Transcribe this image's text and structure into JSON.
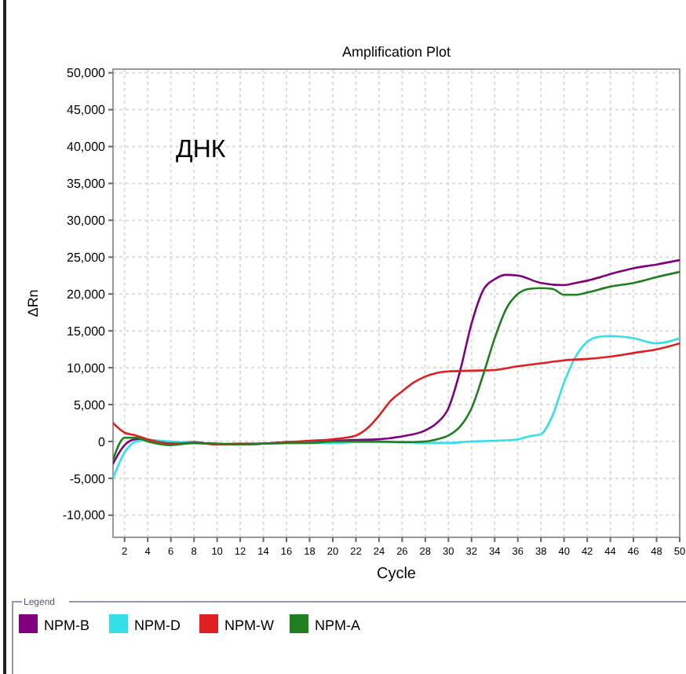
{
  "chart_data": {
    "type": "line",
    "title": "Amplification Plot",
    "xlabel": "Cycle",
    "ylabel": "ΔRn",
    "legend_title": "Legend",
    "annotations": [
      "ДНК"
    ],
    "xlim": [
      1,
      50
    ],
    "xticks": [
      2,
      4,
      6,
      8,
      10,
      12,
      14,
      16,
      18,
      20,
      22,
      24,
      26,
      28,
      30,
      32,
      34,
      36,
      38,
      40,
      42,
      44,
      46,
      48,
      50
    ],
    "ylim": [
      -13000,
      50500
    ],
    "yticks": [
      {
        "value": -10000,
        "label": "-10,000"
      },
      {
        "value": -5000,
        "label": "-5,000"
      },
      0,
      {
        "value": 5000,
        "label": "5,000"
      },
      {
        "value": 10000,
        "label": "10,000"
      },
      {
        "value": 15000,
        "label": "15,000"
      },
      {
        "value": 20000,
        "label": "20,000"
      },
      {
        "value": 25000,
        "label": "25,000"
      },
      {
        "value": 30000,
        "label": "30,000"
      },
      {
        "value": 35000,
        "label": "35,000"
      },
      {
        "value": 40000,
        "label": "40,000"
      },
      {
        "value": 45000,
        "label": "45,000"
      },
      {
        "value": 50000,
        "label": "50,000"
      }
    ],
    "grid": true,
    "legend": "bottom",
    "line_style": "solid",
    "series": [
      {
        "name": "NPM-B",
        "color": "#800080",
        "x": [
          1,
          2,
          3,
          4,
          6,
          8,
          10,
          12,
          14,
          16,
          18,
          20,
          22,
          24,
          26,
          28,
          29,
          30,
          31,
          32,
          33,
          34,
          35,
          36,
          38,
          40,
          41,
          42,
          44,
          46,
          48,
          50
        ],
        "values": [
          -3000,
          -500,
          300,
          200,
          -200,
          -100,
          -400,
          -400,
          -300,
          -100,
          0,
          100,
          200,
          300,
          700,
          1500,
          2500,
          4500,
          9500,
          16000,
          20500,
          22000,
          22600,
          22500,
          21500,
          21200,
          21500,
          21800,
          22700,
          23500,
          24000,
          24600
        ]
      },
      {
        "name": "NPM-D",
        "color": "#33e0e8",
        "x": [
          1,
          2,
          3,
          4,
          6,
          8,
          10,
          12,
          14,
          16,
          18,
          20,
          22,
          24,
          26,
          28,
          30,
          32,
          34,
          36,
          37,
          38,
          39,
          40,
          41,
          42,
          43,
          44,
          46,
          48,
          50
        ],
        "values": [
          -5000,
          -1500,
          0,
          200,
          0,
          -200,
          -300,
          -300,
          -300,
          -200,
          -200,
          -200,
          -100,
          -100,
          -100,
          -200,
          -200,
          0,
          100,
          300,
          700,
          1000,
          3500,
          8000,
          11500,
          13500,
          14200,
          14300,
          14000,
          13300,
          14000
        ]
      },
      {
        "name": "NPM-W",
        "color": "#e02020",
        "x": [
          1,
          2,
          3,
          4,
          6,
          8,
          10,
          12,
          14,
          16,
          18,
          20,
          22,
          23,
          24,
          25,
          26,
          27,
          28,
          29,
          30,
          32,
          34,
          36,
          38,
          40,
          42,
          44,
          46,
          48,
          50
        ],
        "values": [
          2500,
          1200,
          800,
          300,
          -300,
          -200,
          -400,
          -300,
          -300,
          -100,
          100,
          300,
          800,
          1800,
          3500,
          5500,
          6800,
          8000,
          8800,
          9300,
          9500,
          9600,
          9700,
          10200,
          10600,
          11000,
          11200,
          11500,
          12000,
          12500,
          13300
        ]
      },
      {
        "name": "NPM-A",
        "color": "#208020",
        "x": [
          1,
          2,
          3,
          4,
          6,
          8,
          10,
          12,
          14,
          16,
          18,
          20,
          22,
          24,
          26,
          28,
          29,
          30,
          31,
          32,
          33,
          34,
          35,
          36,
          37,
          38,
          39,
          40,
          41,
          42,
          44,
          46,
          48,
          50
        ],
        "values": [
          -2500,
          500,
          500,
          0,
          -500,
          -200,
          -300,
          -400,
          -300,
          -200,
          -200,
          0,
          0,
          0,
          -100,
          0,
          300,
          800,
          2000,
          4500,
          9000,
          14000,
          18000,
          20000,
          20700,
          20800,
          20700,
          19900,
          19900,
          20200,
          21000,
          21500,
          22300,
          23000
        ]
      }
    ]
  }
}
